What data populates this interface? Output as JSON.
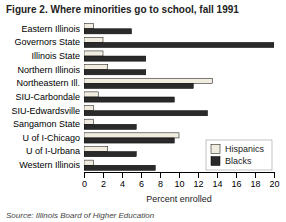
{
  "chart_data": {
    "type": "bar",
    "orientation": "horizontal",
    "title": "Figure 2. Where minorities go to school, fall 1991",
    "annotations": [
      "Source: Illinois Board of Higher Education"
    ],
    "xlabel": "Percent enrolled",
    "categories": [
      "Eastern Illinois",
      "Governors State",
      "Illinois State",
      "Northern Illinois",
      "Northeastern Ill.",
      "SIU-Carbondale",
      "SIU-Edwardsville",
      "Sangamon State",
      "U of I-Chicago",
      "U of I-Urbana",
      "Western Illinois"
    ],
    "series": [
      {
        "name": "Hispanics",
        "color": "#f0ece0",
        "values": [
          1.0,
          2.0,
          2.0,
          2.5,
          13.5,
          1.5,
          1.0,
          1.0,
          10.0,
          2.5,
          1.0
        ]
      },
      {
        "name": "Blacks",
        "color": "#2a2a2a",
        "values": [
          5.0,
          20.0,
          6.5,
          6.5,
          11.5,
          9.5,
          13.0,
          5.5,
          9.5,
          5.5,
          7.5
        ]
      }
    ],
    "xlim": [
      0,
      20
    ],
    "xticks": [
      0,
      2,
      4,
      6,
      8,
      10,
      12,
      14,
      16,
      18,
      20
    ],
    "grid": false,
    "legend": "lower right"
  }
}
